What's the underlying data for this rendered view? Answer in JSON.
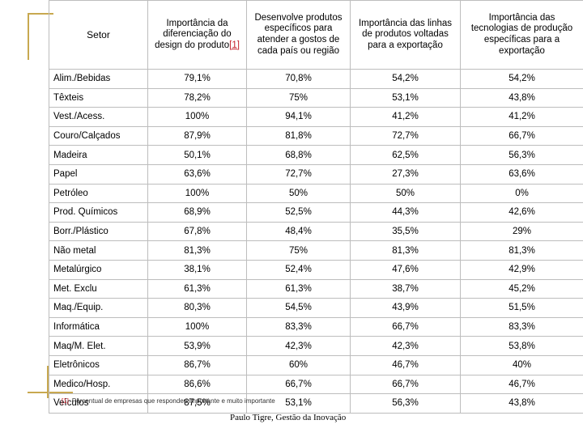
{
  "table": {
    "headers": {
      "sector": "Setor",
      "col1": "Importância da diferenciação do design do produto",
      "col1_footnote": "[1]",
      "col2": "Desenvolve produtos específicos para atender a gostos de cada país ou região",
      "col3": "Importância das linhas de produtos voltadas para a exportação",
      "col4": "Importância das tecnologias de produção específicas para a exportação"
    },
    "rows": [
      {
        "sector": "Alim./Bebidas",
        "c1": "79,1%",
        "c2": "70,8%",
        "c3": "54,2%",
        "c4": "54,2%"
      },
      {
        "sector": "Têxteis",
        "c1": "78,2%",
        "c2": "75%",
        "c3": "53,1%",
        "c4": "43,8%"
      },
      {
        "sector": "Vest./Acess.",
        "c1": "100%",
        "c2": "94,1%",
        "c3": "41,2%",
        "c4": "41,2%"
      },
      {
        "sector": "Couro/Calçados",
        "c1": "87,9%",
        "c2": "81,8%",
        "c3": "72,7%",
        "c4": "66,7%"
      },
      {
        "sector": "Madeira",
        "c1": "50,1%",
        "c2": "68,8%",
        "c3": "62,5%",
        "c4": "56,3%"
      },
      {
        "sector": "Papel",
        "c1": "63,6%",
        "c2": "72,7%",
        "c3": "27,3%",
        "c4": "63,6%"
      },
      {
        "sector": "Petróleo",
        "c1": "100%",
        "c2": "50%",
        "c3": "50%",
        "c4": "0%"
      },
      {
        "sector": "Prod. Químicos",
        "c1": "68,9%",
        "c2": "52,5%",
        "c3": "44,3%",
        "c4": "42,6%"
      },
      {
        "sector": "Borr./Plástico",
        "c1": "67,8%",
        "c2": "48,4%",
        "c3": "35,5%",
        "c4": "29%"
      },
      {
        "sector": "Não metal",
        "c1": "81,3%",
        "c2": "75%",
        "c3": "81,3%",
        "c4": "81,3%"
      },
      {
        "sector": "Metalúrgico",
        "c1": "38,1%",
        "c2": "52,4%",
        "c3": "47,6%",
        "c4": "42,9%"
      },
      {
        "sector": "Met. Exclu",
        "c1": "61,3%",
        "c2": "61,3%",
        "c3": "38,7%",
        "c4": "45,2%"
      },
      {
        "sector": "Maq./Equip.",
        "c1": "80,3%",
        "c2": "54,5%",
        "c3": "43,9%",
        "c4": "51,5%"
      },
      {
        "sector": "Informática",
        "c1": "100%",
        "c2": "83,3%",
        "c3": "66,7%",
        "c4": "83,3%"
      },
      {
        "sector": "Maq/M. Elet.",
        "c1": "53,9%",
        "c2": "42,3%",
        "c3": "42,3%",
        "c4": "53,8%"
      },
      {
        "sector": "Eletrônicos",
        "c1": "86,7%",
        "c2": "60%",
        "c3": "46,7%",
        "c4": "40%"
      },
      {
        "sector": "Medico/Hosp.",
        "c1": "86,6%",
        "c2": "66,7%",
        "c3": "66,7%",
        "c4": "46,7%"
      },
      {
        "sector": "Veículos",
        "c1": "87,5%",
        "c2": "53,1%",
        "c3": "56,3%",
        "c4": "43,8%"
      }
    ]
  },
  "footnote": {
    "mark": "[1]",
    "text": "Percentual de empresas que respondeu importante e muito importante"
  },
  "footer": "Paulo Tigre, Gestão da Inovação",
  "colors": {
    "accent": "#c8a850",
    "link": "#c4202b",
    "border": "#bdbdbd"
  }
}
